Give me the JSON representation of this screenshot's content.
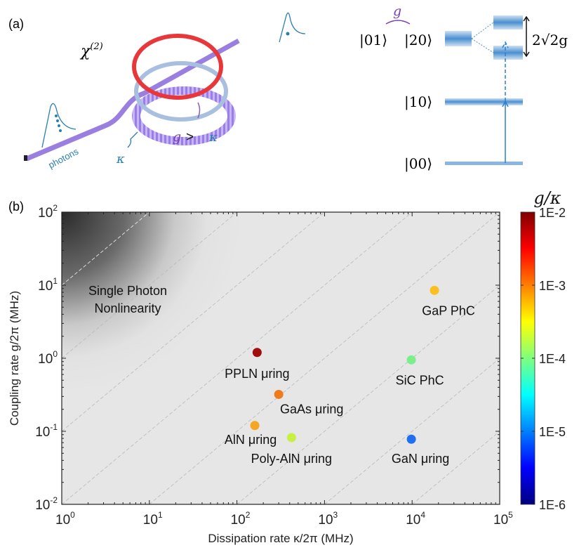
{
  "panel_a": {
    "label": "(a)",
    "chi": "χ",
    "chi_sup": "(2)",
    "photons": "photons",
    "kappa": "κ",
    "g_gt_k_g": "g",
    "g_gt_k_gt": ">",
    "g_gt_k_k": "κ",
    "coupling_g": "g",
    "state_01": "|01⟩",
    "state_20": "|20⟩",
    "state_10": "|10⟩",
    "state_00": "|00⟩",
    "splitting": "2√2g",
    "colors": {
      "waveguide": "#9b7fe0",
      "ring_red": "#e8373a",
      "ring_blue": "#a8bfe0",
      "ring_purple": "#a98cf0",
      "level": "#4a8fd0",
      "text_teal": "#2a7fb0"
    }
  },
  "chart_data": {
    "panel_label": "(b)",
    "type": "scatter",
    "xlabel": "Dissipation rate κ/2π (MHz)",
    "ylabel": "Coupling rate g/2π (MHz)",
    "xscale": "log",
    "yscale": "log",
    "xlim": [
      1,
      100000
    ],
    "ylim": [
      0.01,
      100
    ],
    "xticks": [
      {
        "base": "10",
        "exp": "0"
      },
      {
        "base": "10",
        "exp": "1"
      },
      {
        "base": "10",
        "exp": "2"
      },
      {
        "base": "10",
        "exp": "3"
      },
      {
        "base": "10",
        "exp": "4"
      },
      {
        "base": "10",
        "exp": "5"
      }
    ],
    "yticks": [
      {
        "base": "10",
        "exp": "-2"
      },
      {
        "base": "10",
        "exp": "-1"
      },
      {
        "base": "10",
        "exp": "0"
      },
      {
        "base": "10",
        "exp": "1"
      },
      {
        "base": "10",
        "exp": "2"
      }
    ],
    "region_label": [
      "Single Photon",
      "Nonlinearity"
    ],
    "guide_lines": "constant g/κ, one per decade, dashed",
    "colorbar": {
      "title": "g/κ",
      "scale": "log",
      "colormap": "jet",
      "range": [
        1e-06,
        0.01
      ],
      "ticks": [
        "1E-6",
        "1E-5",
        "1E-4",
        "1E-3",
        "1E-2"
      ]
    },
    "points": [
      {
        "name": "PPLN μring",
        "kappa": 170,
        "g": 1.2,
        "color": "#a00d0d"
      },
      {
        "name": "GaAs μring",
        "kappa": 300,
        "g": 0.32,
        "color": "#f07a1a"
      },
      {
        "name": "AlN μring",
        "kappa": 160,
        "g": 0.12,
        "color": "#f5a623"
      },
      {
        "name": "Poly-AlN μring",
        "kappa": 420,
        "g": 0.082,
        "color": "#c8f040"
      },
      {
        "name": "GaP PhC",
        "kappa": 18000,
        "g": 8.5,
        "color": "#fbbf22"
      },
      {
        "name": "SiC PhC",
        "kappa": 9800,
        "g": 0.95,
        "color": "#7af08a"
      },
      {
        "name": "GaN μring",
        "kappa": 9800,
        "g": 0.078,
        "color": "#1f6ff0"
      }
    ]
  }
}
